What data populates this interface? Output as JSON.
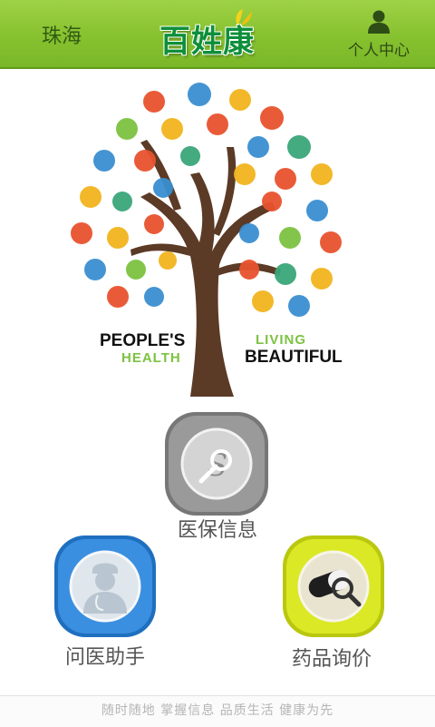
{
  "header": {
    "city": "珠海",
    "logo_text": "百姓康",
    "profile_label": "个人中心",
    "background_color": "#86c12f"
  },
  "banner": {
    "slogan_line1": "PEOPLE'S",
    "slogan_line2": "HEALTH",
    "slogan_line3": "LIVING",
    "slogan_line4": "BEAUTIFUL",
    "accent_color": "#7dc242"
  },
  "menu": {
    "insurance": {
      "label": "医保信息",
      "icon": "medical-insurance-search-icon",
      "color": "#8c8c8c"
    },
    "doctor": {
      "label": "问医助手",
      "icon": "doctor-icon",
      "color": "#2f86d6"
    },
    "drug": {
      "label": "药品询价",
      "icon": "pill-search-icon",
      "color": "#d7e61f"
    }
  },
  "footer": {
    "tagline": "随时随地  掌握信息  品质生活  健康为先"
  }
}
